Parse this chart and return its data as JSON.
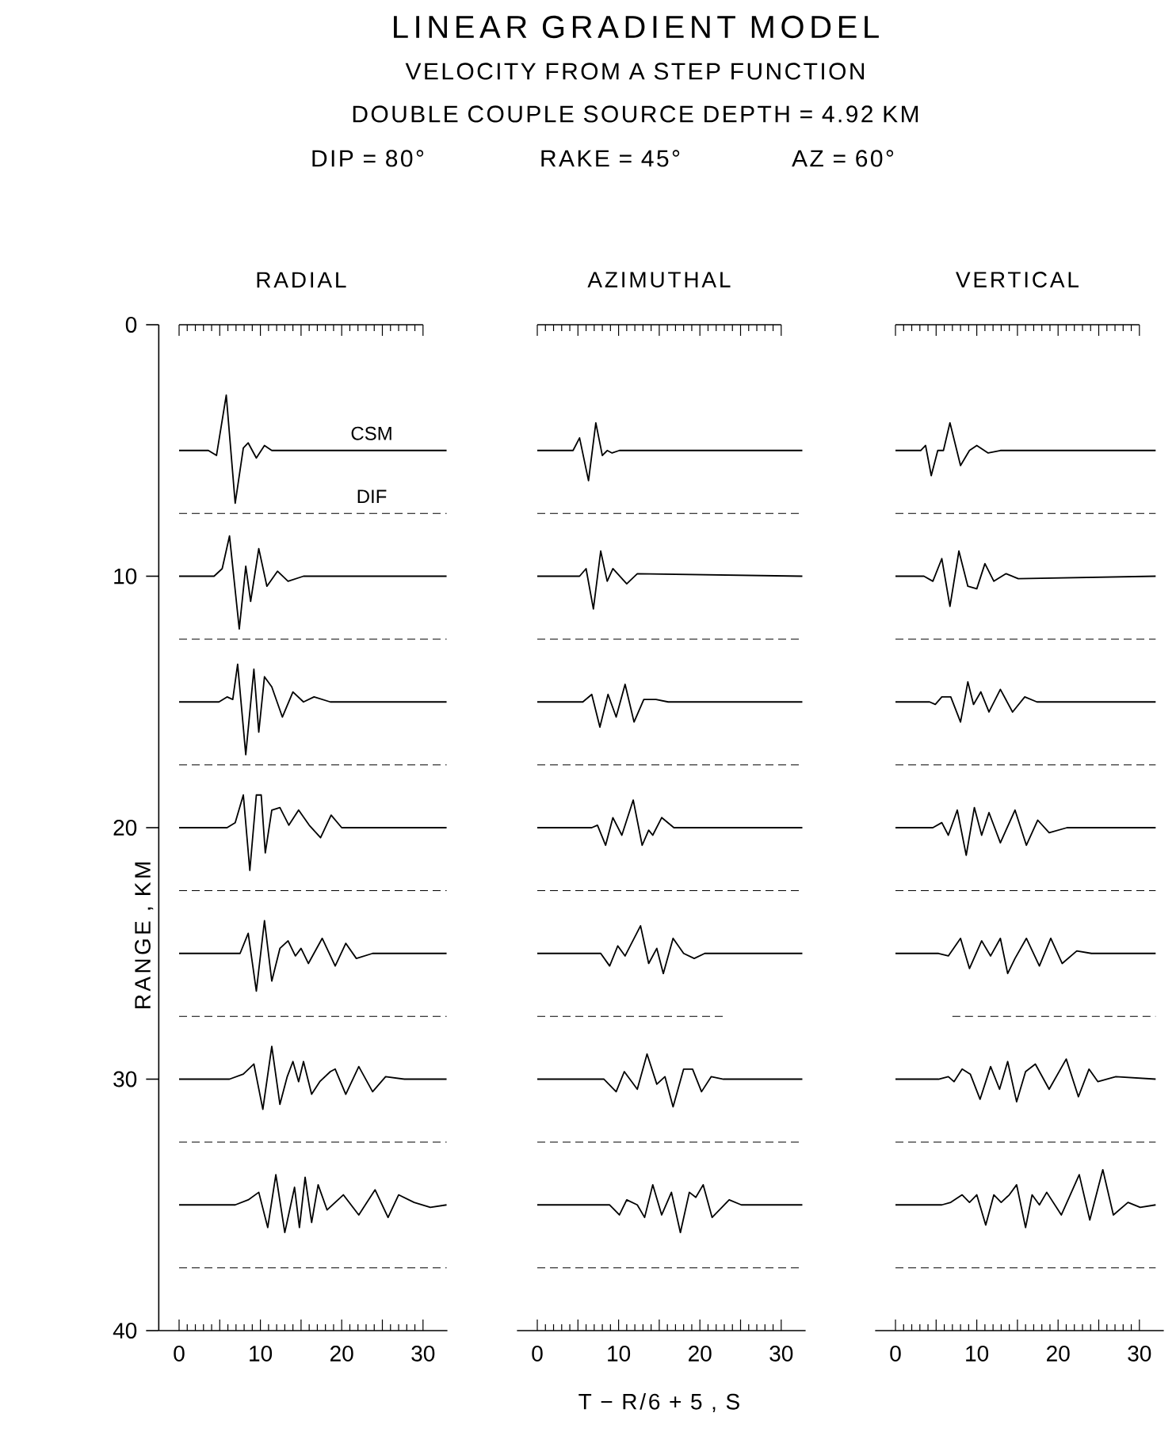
{
  "chart_data": [
    {
      "type": "line",
      "title": "RADIAL",
      "ylabel": "RANGE , KM",
      "color": "#000000",
      "line_style": "solid",
      "annotations": [
        "LINEAR GRADIENT MODEL",
        "VELOCITY FROM A STEP FUNCTION",
        "DOUBLE COUPLE SOURCE DEPTH = 4.92 KM",
        "DIP = 80°",
        "RAKE = 45°",
        "AZ = 60°"
      ],
      "xlim": [
        -2.5,
        33
      ],
      "ylim": [
        40,
        0
      ],
      "xticks": [
        0,
        {
          "value": 1,
          "label": null
        },
        {
          "value": 2,
          "label": null
        },
        {
          "value": 3,
          "label": null
        },
        {
          "value": 4,
          "label": null
        },
        {
          "value": 5,
          "label": null
        },
        {
          "value": 6,
          "label": null
        },
        {
          "value": 7,
          "label": null
        },
        {
          "value": 8,
          "label": null
        },
        {
          "value": 9,
          "label": null
        },
        10,
        {
          "value": 11,
          "label": null
        },
        {
          "value": 12,
          "label": null
        },
        {
          "value": 13,
          "label": null
        },
        {
          "value": 14,
          "label": null
        },
        {
          "value": 15,
          "label": null
        },
        {
          "value": 16,
          "label": null
        },
        {
          "value": 17,
          "label": null
        },
        {
          "value": 18,
          "label": null
        },
        {
          "value": 19,
          "label": null
        },
        20,
        {
          "value": 21,
          "label": null
        },
        {
          "value": 22,
          "label": null
        },
        {
          "value": 23,
          "label": null
        },
        {
          "value": 24,
          "label": null
        },
        {
          "value": 25,
          "label": null
        },
        {
          "value": 26,
          "label": null
        },
        {
          "value": 27,
          "label": null
        },
        {
          "value": 28,
          "label": null
        },
        {
          "value": 29,
          "label": null
        },
        30
      ],
      "yticks": [
        0,
        10,
        20,
        30,
        40
      ],
      "series": [
        {
          "name": "CSM",
          "x": [
            0,
            3.6,
            4.6,
            5.8,
            6.9,
            7.9,
            8.5,
            9.5,
            10.5,
            11.4,
            15.3,
            32.9
          ],
          "values": [
            5,
            5,
            5.2,
            2.8,
            7.1,
            4.9,
            4.7,
            5.3,
            4.8,
            5.0,
            5,
            5
          ]
        },
        {
          "name": "DIF",
          "line_style": "dashed",
          "x": [
            0,
            32.9
          ],
          "values": [
            7.5,
            7.5
          ]
        },
        {
          "x": [
            0,
            4.3,
            5.3,
            6.2,
            7.4,
            8.2,
            8.8,
            9.8,
            10.8,
            12.1,
            13.4,
            15.3,
            32.9
          ],
          "values": [
            10,
            10,
            9.7,
            8.4,
            12.1,
            9.6,
            11.0,
            8.9,
            10.4,
            9.8,
            10.2,
            10,
            10
          ]
        },
        {
          "line_style": "dashed",
          "x": [
            0,
            32.9
          ],
          "values": [
            12.5,
            12.5
          ]
        },
        {
          "x": [
            0,
            4.9,
            5.9,
            6.6,
            7.2,
            8.2,
            9.2,
            9.8,
            10.5,
            11.4,
            12.7,
            14.0,
            15.3,
            16.6,
            18.6,
            32.9
          ],
          "values": [
            15,
            15,
            14.8,
            14.9,
            13.5,
            17.1,
            13.7,
            16.2,
            14.0,
            14.4,
            15.6,
            14.6,
            15.0,
            14.8,
            15,
            15
          ]
        },
        {
          "line_style": "dashed",
          "x": [
            0,
            32.9
          ],
          "values": [
            17.5,
            17.5
          ]
        },
        {
          "x": [
            0,
            5.9,
            6.9,
            7.9,
            8.7,
            9.5,
            10.1,
            10.6,
            11.4,
            12.4,
            13.5,
            14.7,
            16.0,
            17.4,
            18.7,
            20.0,
            21.8,
            32.9
          ],
          "values": [
            20,
            20,
            19.8,
            18.7,
            21.7,
            18.7,
            18.7,
            21.0,
            19.3,
            19.2,
            19.9,
            19.3,
            19.9,
            20.4,
            19.5,
            20.0,
            20,
            20
          ]
        },
        {
          "line_style": "dashed",
          "x": [
            0,
            32.9
          ],
          "values": [
            22.5,
            22.5
          ]
        },
        {
          "x": [
            0,
            7.5,
            8.5,
            9.5,
            10.5,
            11.4,
            12.4,
            13.4,
            14.3,
            15.0,
            15.9,
            17.6,
            19.2,
            20.5,
            21.8,
            23.8,
            25.1,
            32.9
          ],
          "values": [
            25,
            25,
            24.2,
            26.5,
            23.7,
            26.1,
            24.8,
            24.5,
            25.1,
            24.8,
            25.4,
            24.4,
            25.5,
            24.6,
            25.2,
            25.0,
            25,
            25
          ]
        },
        {
          "line_style": "dashed",
          "x": [
            0,
            32.9
          ],
          "values": [
            27.5,
            27.5
          ]
        },
        {
          "x": [
            0,
            6.2,
            7.9,
            9.2,
            10.3,
            11.4,
            12.4,
            13.3,
            14.0,
            14.7,
            15.3,
            16.3,
            17.3,
            18.6,
            19.2,
            20.5,
            22.1,
            23.8,
            25.4,
            27.7,
            32.9
          ],
          "values": [
            30,
            30,
            29.8,
            29.4,
            31.2,
            28.7,
            31.0,
            29.9,
            29.3,
            30.1,
            29.3,
            30.6,
            30.1,
            29.7,
            29.6,
            30.6,
            29.5,
            30.5,
            29.9,
            30,
            30
          ]
        },
        {
          "line_style": "dashed",
          "x": [
            0,
            32.9
          ],
          "values": [
            32.5,
            32.5
          ]
        },
        {
          "x": [
            0,
            6.9,
            8.5,
            9.8,
            10.9,
            11.9,
            13.0,
            14.2,
            14.8,
            15.5,
            16.3,
            17.1,
            18.2,
            20.2,
            22.1,
            24.1,
            25.7,
            27.0,
            28.9,
            30.9,
            32.9
          ],
          "values": [
            35,
            35,
            34.8,
            34.5,
            35.9,
            33.8,
            36.1,
            34.3,
            35.9,
            33.9,
            35.7,
            34.2,
            35.2,
            34.6,
            35.4,
            34.4,
            35.5,
            34.6,
            34.9,
            35.1,
            35
          ]
        },
        {
          "line_style": "dashed",
          "x": [
            0,
            32.9
          ],
          "values": [
            37.5,
            37.5
          ]
        }
      ]
    },
    {
      "type": "line",
      "title": "AZIMUTHAL",
      "xlabel": "T − R/6 + 5 , S",
      "color": "#000000",
      "line_style": "solid",
      "tick_labels": "x",
      "xlim": [
        -2.5,
        33
      ],
      "ylim": [
        40,
        0
      ],
      "xticks": [
        0,
        {
          "value": 1,
          "label": null
        },
        {
          "value": 2,
          "label": null
        },
        {
          "value": 3,
          "label": null
        },
        {
          "value": 4,
          "label": null
        },
        {
          "value": 5,
          "label": null
        },
        {
          "value": 6,
          "label": null
        },
        {
          "value": 7,
          "label": null
        },
        {
          "value": 8,
          "label": null
        },
        {
          "value": 9,
          "label": null
        },
        10,
        {
          "value": 11,
          "label": null
        },
        {
          "value": 12,
          "label": null
        },
        {
          "value": 13,
          "label": null
        },
        {
          "value": 14,
          "label": null
        },
        {
          "value": 15,
          "label": null
        },
        {
          "value": 16,
          "label": null
        },
        {
          "value": 17,
          "label": null
        },
        {
          "value": 18,
          "label": null
        },
        {
          "value": 19,
          "label": null
        },
        20,
        {
          "value": 21,
          "label": null
        },
        {
          "value": 22,
          "label": null
        },
        {
          "value": 23,
          "label": null
        },
        {
          "value": 24,
          "label": null
        },
        {
          "value": 25,
          "label": null
        },
        {
          "value": 26,
          "label": null
        },
        {
          "value": 27,
          "label": null
        },
        {
          "value": 28,
          "label": null
        },
        {
          "value": 29,
          "label": null
        },
        30
      ],
      "series": [
        {
          "x": [
            0,
            4.4,
            5.2,
            6.3,
            7.2,
            8.0,
            8.6,
            9.2,
            10.1,
            32.6
          ],
          "values": [
            5,
            5,
            4.5,
            6.2,
            3.9,
            5.2,
            5,
            5.1,
            5,
            5
          ]
        },
        {
          "line_style": "dashed",
          "x": [
            0,
            32.6
          ],
          "values": [
            7.5,
            7.5
          ]
        },
        {
          "x": [
            0,
            5.2,
            6.0,
            6.9,
            7.8,
            8.6,
            9.3,
            11.0,
            12.3,
            32.6
          ],
          "values": [
            10,
            10,
            9.7,
            11.3,
            9.0,
            10.2,
            9.7,
            10.3,
            9.9,
            10
          ]
        },
        {
          "line_style": "dashed",
          "x": [
            0,
            32.6
          ],
          "values": [
            12.5,
            12.5
          ]
        },
        {
          "x": [
            0,
            5.6,
            6.7,
            7.7,
            8.7,
            9.7,
            10.8,
            11.9,
            13.1,
            14.6,
            16.1,
            32.6
          ],
          "values": [
            15,
            15,
            14.7,
            16.0,
            14.7,
            15.6,
            14.3,
            15.8,
            14.9,
            14.9,
            15,
            15
          ]
        },
        {
          "line_style": "dashed",
          "x": [
            0,
            32.6
          ],
          "values": [
            17.5,
            17.5
          ]
        },
        {
          "x": [
            0,
            6.7,
            7.4,
            8.4,
            9.3,
            10.4,
            11.8,
            12.9,
            13.7,
            14.2,
            15.3,
            16.8,
            32.6
          ],
          "values": [
            20,
            20,
            19.9,
            20.7,
            19.6,
            20.3,
            18.9,
            20.7,
            20.1,
            20.3,
            19.6,
            20,
            20
          ]
        },
        {
          "line_style": "dashed",
          "x": [
            0,
            32.6
          ],
          "values": [
            22.5,
            22.5
          ]
        },
        {
          "x": [
            0,
            7.8,
            8.9,
            9.9,
            10.8,
            12.7,
            13.7,
            14.7,
            15.5,
            16.7,
            18.0,
            19.3,
            20.6,
            32.6
          ],
          "values": [
            25,
            25,
            25.5,
            24.7,
            25.1,
            23.9,
            25.4,
            24.8,
            25.8,
            24.4,
            25,
            25.2,
            25,
            25
          ]
        },
        {
          "line_style": "dashed",
          "x": [
            0,
            22.9
          ],
          "values": [
            27.5,
            27.5
          ]
        },
        {
          "x": [
            0,
            8.2,
            9.7,
            10.7,
            12.3,
            13.5,
            14.7,
            15.7,
            16.7,
            18.0,
            19.1,
            20.2,
            21.4,
            22.9,
            32.6
          ],
          "values": [
            30,
            30,
            30.5,
            29.7,
            30.4,
            29.0,
            30.2,
            29.9,
            31.1,
            29.6,
            29.6,
            30.5,
            29.9,
            30,
            30
          ]
        },
        {
          "line_style": "dashed",
          "x": [
            0,
            32.6
          ],
          "values": [
            32.5,
            32.5
          ]
        },
        {
          "x": [
            0,
            8.9,
            10.1,
            11.0,
            12.3,
            13.2,
            14.2,
            15.3,
            16.5,
            17.6,
            18.7,
            19.5,
            20.4,
            21.5,
            23.6,
            25.1,
            32.6
          ],
          "values": [
            35,
            35,
            35.4,
            34.8,
            35.0,
            35.5,
            34.2,
            35.4,
            34.5,
            36.1,
            34.5,
            34.7,
            34.2,
            35.5,
            34.8,
            35,
            35
          ]
        },
        {
          "line_style": "dashed",
          "x": [
            0,
            32.6
          ],
          "values": [
            37.5,
            37.5
          ]
        }
      ]
    },
    {
      "type": "line",
      "title": "VERTICAL",
      "color": "#000000",
      "line_style": "solid",
      "tick_labels": "x",
      "xlim": [
        -2.5,
        33
      ],
      "ylim": [
        40,
        0
      ],
      "xticks": [
        0,
        {
          "value": 1,
          "label": null
        },
        {
          "value": 2,
          "label": null
        },
        {
          "value": 3,
          "label": null
        },
        {
          "value": 4,
          "label": null
        },
        {
          "value": 5,
          "label": null
        },
        {
          "value": 6,
          "label": null
        },
        {
          "value": 7,
          "label": null
        },
        {
          "value": 8,
          "label": null
        },
        {
          "value": 9,
          "label": null
        },
        10,
        {
          "value": 11,
          "label": null
        },
        {
          "value": 12,
          "label": null
        },
        {
          "value": 13,
          "label": null
        },
        {
          "value": 14,
          "label": null
        },
        {
          "value": 15,
          "label": null
        },
        {
          "value": 16,
          "label": null
        },
        {
          "value": 17,
          "label": null
        },
        {
          "value": 18,
          "label": null
        },
        {
          "value": 19,
          "label": null
        },
        20,
        {
          "value": 21,
          "label": null
        },
        {
          "value": 22,
          "label": null
        },
        {
          "value": 23,
          "label": null
        },
        {
          "value": 24,
          "label": null
        },
        {
          "value": 25,
          "label": null
        },
        {
          "value": 26,
          "label": null
        },
        {
          "value": 27,
          "label": null
        },
        {
          "value": 28,
          "label": null
        },
        {
          "value": 29,
          "label": null
        },
        30
      ],
      "series": [
        {
          "x": [
            0,
            3.1,
            3.7,
            4.4,
            5.2,
            5.9,
            6.7,
            8.0,
            9.1,
            10.0,
            11.4,
            12.9,
            32.0
          ],
          "values": [
            5,
            5,
            4.8,
            6.0,
            5.0,
            5.0,
            3.9,
            5.6,
            5,
            4.8,
            5.1,
            5,
            5
          ]
        },
        {
          "line_style": "dashed",
          "x": [
            0,
            32.0
          ],
          "values": [
            7.5,
            7.5
          ]
        },
        {
          "x": [
            0,
            3.5,
            4.6,
            5.7,
            6.7,
            7.8,
            8.9,
            10.0,
            11.0,
            12.1,
            13.6,
            15.1,
            32.0
          ],
          "values": [
            10,
            10,
            10.2,
            9.3,
            11.2,
            9.0,
            10.4,
            10.5,
            9.5,
            10.2,
            9.9,
            10.1,
            10
          ]
        },
        {
          "line_style": "dashed",
          "x": [
            0,
            32.0
          ],
          "values": [
            12.5,
            12.5
          ]
        },
        {
          "x": [
            0,
            4.2,
            4.9,
            5.7,
            6.8,
            8.0,
            8.9,
            9.6,
            10.5,
            11.5,
            12.9,
            14.4,
            15.9,
            17.4,
            32.0
          ],
          "values": [
            15,
            15,
            15.1,
            14.8,
            14.8,
            15.8,
            14.2,
            15.1,
            14.6,
            15.4,
            14.5,
            15.4,
            14.8,
            15,
            15
          ]
        },
        {
          "line_style": "dashed",
          "x": [
            0,
            32.0
          ],
          "values": [
            17.5,
            17.5
          ]
        },
        {
          "x": [
            0,
            4.6,
            5.7,
            6.5,
            7.6,
            8.7,
            9.7,
            10.6,
            11.5,
            12.9,
            14.7,
            16.1,
            17.5,
            18.9,
            21.1,
            32.0
          ],
          "values": [
            20,
            20,
            19.8,
            20.3,
            19.3,
            21.1,
            19.2,
            20.3,
            19.4,
            20.6,
            19.3,
            20.7,
            19.7,
            20.2,
            20,
            20
          ]
        },
        {
          "line_style": "dashed",
          "x": [
            0,
            32.0
          ],
          "values": [
            22.5,
            22.5
          ]
        },
        {
          "x": [
            0,
            5.3,
            6.5,
            8.0,
            9.1,
            10.6,
            11.7,
            12.9,
            13.8,
            14.7,
            16.1,
            17.7,
            19.1,
            20.5,
            22.3,
            24.1,
            32.0
          ],
          "values": [
            25,
            25,
            25.1,
            24.4,
            25.6,
            24.5,
            25.1,
            24.4,
            25.8,
            25.2,
            24.4,
            25.5,
            24.4,
            25.4,
            24.9,
            25,
            25
          ]
        },
        {
          "line_style": "dashed",
          "x": [
            7.0,
            32.0
          ],
          "values": [
            27.5,
            27.5
          ]
        },
        {
          "x": [
            0,
            5.3,
            6.5,
            7.2,
            8.2,
            9.2,
            10.4,
            11.7,
            12.8,
            13.8,
            14.9,
            16.0,
            17.2,
            18.9,
            21.0,
            22.5,
            23.8,
            24.9,
            27.1,
            32.0
          ],
          "values": [
            30,
            30,
            29.9,
            30.1,
            29.6,
            29.8,
            30.8,
            29.5,
            30.4,
            29.3,
            30.9,
            29.7,
            29.4,
            30.4,
            29.2,
            30.7,
            29.6,
            30.1,
            29.9,
            30
          ]
        },
        {
          "line_style": "dashed",
          "x": [
            0,
            32.0
          ],
          "values": [
            32.5,
            32.5
          ]
        },
        {
          "x": [
            0,
            5.7,
            6.8,
            8.2,
            9.1,
            10.0,
            11.1,
            12.1,
            13.0,
            14.0,
            14.9,
            16.0,
            16.8,
            17.7,
            18.6,
            20.4,
            22.6,
            23.9,
            25.5,
            26.8,
            28.6,
            30.1,
            32.0
          ],
          "values": [
            35,
            35,
            34.9,
            34.6,
            34.9,
            34.6,
            35.8,
            34.6,
            34.9,
            34.6,
            34.2,
            35.9,
            34.6,
            35,
            34.5,
            35.4,
            33.8,
            35.6,
            33.6,
            35.4,
            34.9,
            35.1,
            35
          ]
        },
        {
          "line_style": "dashed",
          "x": [
            0,
            32.0
          ],
          "values": [
            37.5,
            37.5
          ]
        }
      ]
    }
  ]
}
